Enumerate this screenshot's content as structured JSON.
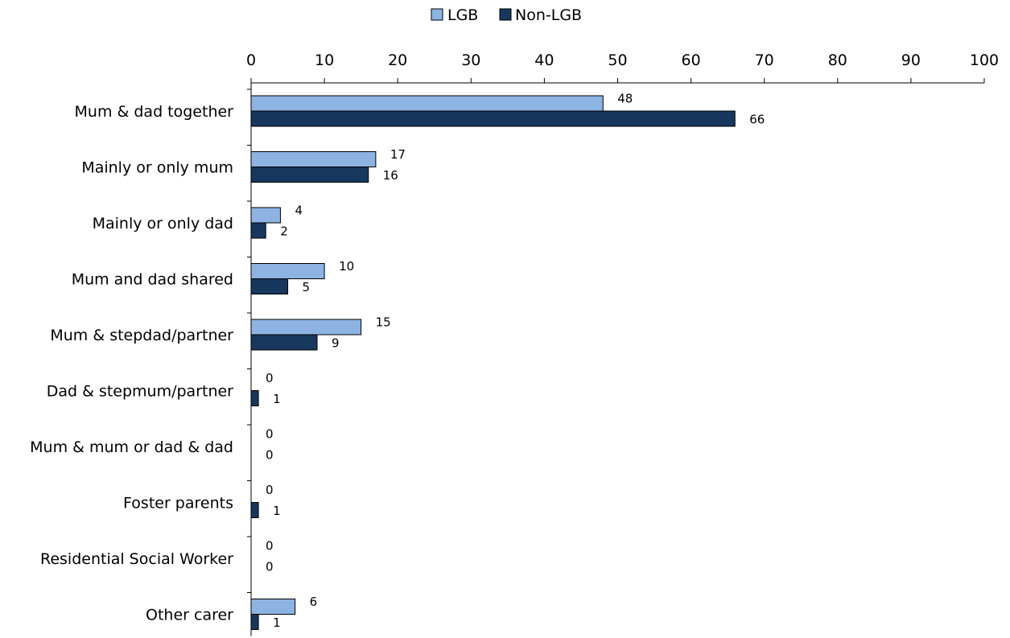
{
  "colors": {
    "lgb": "#8DB3E2",
    "non_lgb": "#17375E",
    "axis": "#000000"
  },
  "legend": {
    "items": [
      {
        "key": "lgb",
        "label": "LGB"
      },
      {
        "key": "non_lgb",
        "label": "Non-LGB"
      }
    ],
    "placement": "top-center"
  },
  "chart_data": {
    "type": "bar",
    "orientation": "horizontal",
    "title": "",
    "xlabel": "",
    "ylabel": "",
    "xlim": [
      0,
      100
    ],
    "xticks": [
      0,
      10,
      20,
      30,
      40,
      50,
      60,
      70,
      80,
      90,
      100
    ],
    "axis_position": "top",
    "grid": false,
    "categories": [
      "Mum & dad together",
      "Mainly or only mum",
      "Mainly or only dad",
      "Mum and dad shared",
      "Mum & stepdad/partner",
      "Dad & stepmum/partner",
      "Mum & mum or dad & dad",
      "Foster parents",
      "Residential Social Worker",
      "Other carer"
    ],
    "series": [
      {
        "name": "LGB",
        "key": "lgb",
        "values": [
          48,
          17,
          4,
          10,
          15,
          0,
          0,
          0,
          0,
          6
        ]
      },
      {
        "name": "Non-LGB",
        "key": "non_lgb",
        "values": [
          66,
          16,
          2,
          5,
          9,
          1,
          0,
          1,
          0,
          1
        ]
      }
    ]
  }
}
